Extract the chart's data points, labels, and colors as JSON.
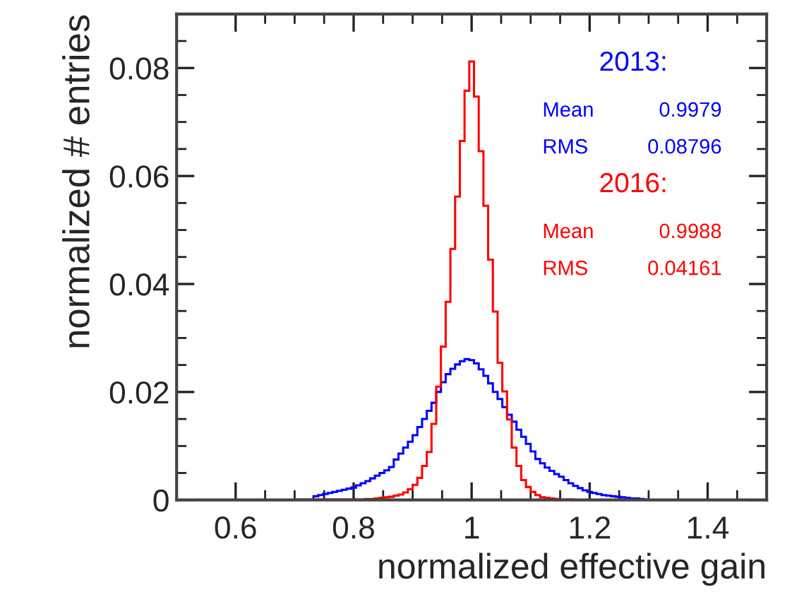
{
  "chart_data": {
    "type": "histogram",
    "xlabel": "normalized effective gain",
    "ylabel": "normalized # entries",
    "bins": [
      0.5,
      0.508,
      0.516,
      0.524,
      0.532,
      0.54,
      0.548,
      0.556,
      0.564,
      0.572,
      0.58,
      0.588,
      0.596,
      0.604,
      0.612,
      0.62,
      0.628,
      0.636,
      0.644,
      0.652,
      0.66,
      0.668,
      0.676,
      0.684,
      0.692,
      0.7,
      0.708,
      0.716,
      0.724,
      0.732,
      0.74,
      0.748,
      0.756,
      0.764,
      0.772,
      0.78,
      0.788,
      0.796,
      0.804,
      0.812,
      0.82,
      0.828,
      0.836,
      0.844,
      0.852,
      0.86,
      0.868,
      0.876,
      0.884,
      0.892,
      0.9,
      0.908,
      0.916,
      0.924,
      0.932,
      0.94,
      0.948,
      0.956,
      0.964,
      0.972,
      0.98,
      0.988,
      0.996,
      1.004,
      1.012,
      1.02,
      1.028,
      1.036,
      1.044,
      1.052,
      1.06,
      1.068,
      1.076,
      1.084,
      1.092,
      1.1,
      1.108,
      1.116,
      1.124,
      1.132,
      1.14,
      1.148,
      1.156,
      1.164,
      1.172,
      1.18,
      1.188,
      1.196,
      1.204,
      1.212,
      1.22,
      1.228,
      1.236,
      1.244,
      1.252,
      1.26,
      1.268,
      1.276,
      1.284,
      1.292,
      1.3,
      1.308,
      1.316,
      1.324,
      1.332,
      1.34,
      1.348,
      1.356,
      1.364,
      1.372,
      1.38,
      1.388,
      1.396,
      1.404,
      1.412,
      1.42,
      1.428,
      1.436,
      1.444,
      1.452,
      1.46,
      1.468,
      1.476,
      1.484,
      1.492,
      1.5
    ],
    "series": [
      {
        "name": "2013:",
        "color": "#0000ff",
        "values": [
          0,
          0,
          0,
          0,
          0,
          0,
          0,
          0,
          0,
          0,
          0,
          0,
          0,
          0,
          0,
          0,
          0,
          0,
          0,
          0,
          0,
          0,
          0,
          0,
          0,
          0,
          0,
          0,
          0,
          0.0007,
          0.0009,
          0.0011,
          0.0013,
          0.0015,
          0.0017,
          0.0019,
          0.0021,
          0.0023,
          0.0027,
          0.0031,
          0.0035,
          0.004,
          0.0045,
          0.005,
          0.0055,
          0.0061,
          0.0075,
          0.0086,
          0.0097,
          0.0108,
          0.012,
          0.0135,
          0.015,
          0.0165,
          0.018,
          0.02,
          0.0218,
          0.0233,
          0.0243,
          0.0251,
          0.0257,
          0.0261,
          0.0259,
          0.0253,
          0.0242,
          0.023,
          0.0216,
          0.02,
          0.0187,
          0.0172,
          0.0158,
          0.0145,
          0.013,
          0.0117,
          0.0104,
          0.009,
          0.0076,
          0.0068,
          0.006,
          0.0054,
          0.0048,
          0.0043,
          0.0037,
          0.0031,
          0.0026,
          0.0022,
          0.0018,
          0.0015,
          0.0013,
          0.0011,
          0.0009,
          0.0008,
          0.0007,
          0.0006,
          0.0005,
          0.0004,
          0.0003,
          0.0003,
          0.0002,
          0.0001,
          0,
          0,
          0,
          0,
          0,
          0,
          0,
          0,
          0,
          0,
          0,
          0,
          0,
          0,
          0,
          0,
          0,
          0,
          0,
          0,
          0,
          0,
          0,
          0,
          0
        ]
      },
      {
        "name": "2016:",
        "color": "#ff0000",
        "values": [
          0,
          0,
          0,
          0,
          0,
          0,
          0,
          0,
          0,
          0,
          0,
          0,
          0,
          0,
          0,
          0,
          0,
          0,
          0,
          0,
          0,
          0,
          0,
          0,
          0,
          0.0001,
          0.0001,
          0.0001,
          0.0001,
          0.0001,
          0.0001,
          0.0001,
          0.0001,
          0.0001,
          0.0001,
          0.0001,
          0.0001,
          0.0001,
          0.0001,
          0.0001,
          0.0002,
          0.0002,
          0.0003,
          0.0004,
          0.0005,
          0.0006,
          0.0008,
          0.001,
          0.0014,
          0.002,
          0.0028,
          0.0041,
          0.0063,
          0.0089,
          0.0141,
          0.021,
          0.0284,
          0.0367,
          0.0465,
          0.0562,
          0.0665,
          0.0758,
          0.0812,
          0.0747,
          0.0646,
          0.0545,
          0.0445,
          0.0349,
          0.0254,
          0.0201,
          0.0149,
          0.0097,
          0.0063,
          0.0037,
          0.0024,
          0.0015,
          0.0009,
          0.0005,
          0.0004,
          0.0003,
          0.0002,
          0.0001,
          0.0001,
          0.0001,
          0,
          0,
          0,
          0,
          0,
          0,
          0,
          0,
          0,
          0,
          0,
          0,
          0,
          0,
          0,
          0,
          0,
          0,
          0,
          0,
          0,
          0,
          0,
          0,
          0,
          0,
          0,
          0,
          0,
          0,
          0,
          0,
          0,
          0,
          0,
          0,
          0,
          0,
          0,
          0,
          0
        ]
      }
    ],
    "annotations": [
      "Mean",
      "0.9979",
      "RMS",
      "0.08796",
      "Mean",
      "0.9988",
      "RMS",
      "0.04161"
    ],
    "xlim": [
      0.5,
      1.5
    ],
    "ylim": [
      0,
      0.09
    ],
    "xticks": [
      0.6,
      {
        "value": 0.65,
        "label": null
      },
      {
        "value": 0.7,
        "label": null
      },
      {
        "value": 0.75,
        "label": null
      },
      0.8,
      {
        "value": 0.85,
        "label": null
      },
      {
        "value": 0.9,
        "label": null
      },
      {
        "value": 0.95,
        "label": null
      },
      1,
      {
        "value": 1.05,
        "label": null
      },
      {
        "value": 1.1,
        "label": null
      },
      {
        "value": 1.15,
        "label": null
      },
      1.2,
      {
        "value": 1.25,
        "label": null
      },
      {
        "value": 1.3,
        "label": null
      },
      {
        "value": 1.35,
        "label": null
      },
      1.4,
      {
        "value": 1.45,
        "label": null
      }
    ],
    "yticks": [
      0,
      {
        "value": 0.005,
        "label": null
      },
      {
        "value": 0.01,
        "label": null
      },
      {
        "value": 0.015,
        "label": null
      },
      0.02,
      {
        "value": 0.025,
        "label": null
      },
      {
        "value": 0.03,
        "label": null
      },
      {
        "value": 0.035,
        "label": null
      },
      0.04,
      {
        "value": 0.045,
        "label": null
      },
      {
        "value": 0.05,
        "label": null
      },
      {
        "value": 0.055,
        "label": null
      },
      0.06,
      {
        "value": 0.065,
        "label": null
      },
      {
        "value": 0.07,
        "label": null
      },
      {
        "value": 0.075,
        "label": null
      },
      0.08,
      {
        "value": 0.085,
        "label": null
      }
    ],
    "grid": false,
    "legend": false
  }
}
